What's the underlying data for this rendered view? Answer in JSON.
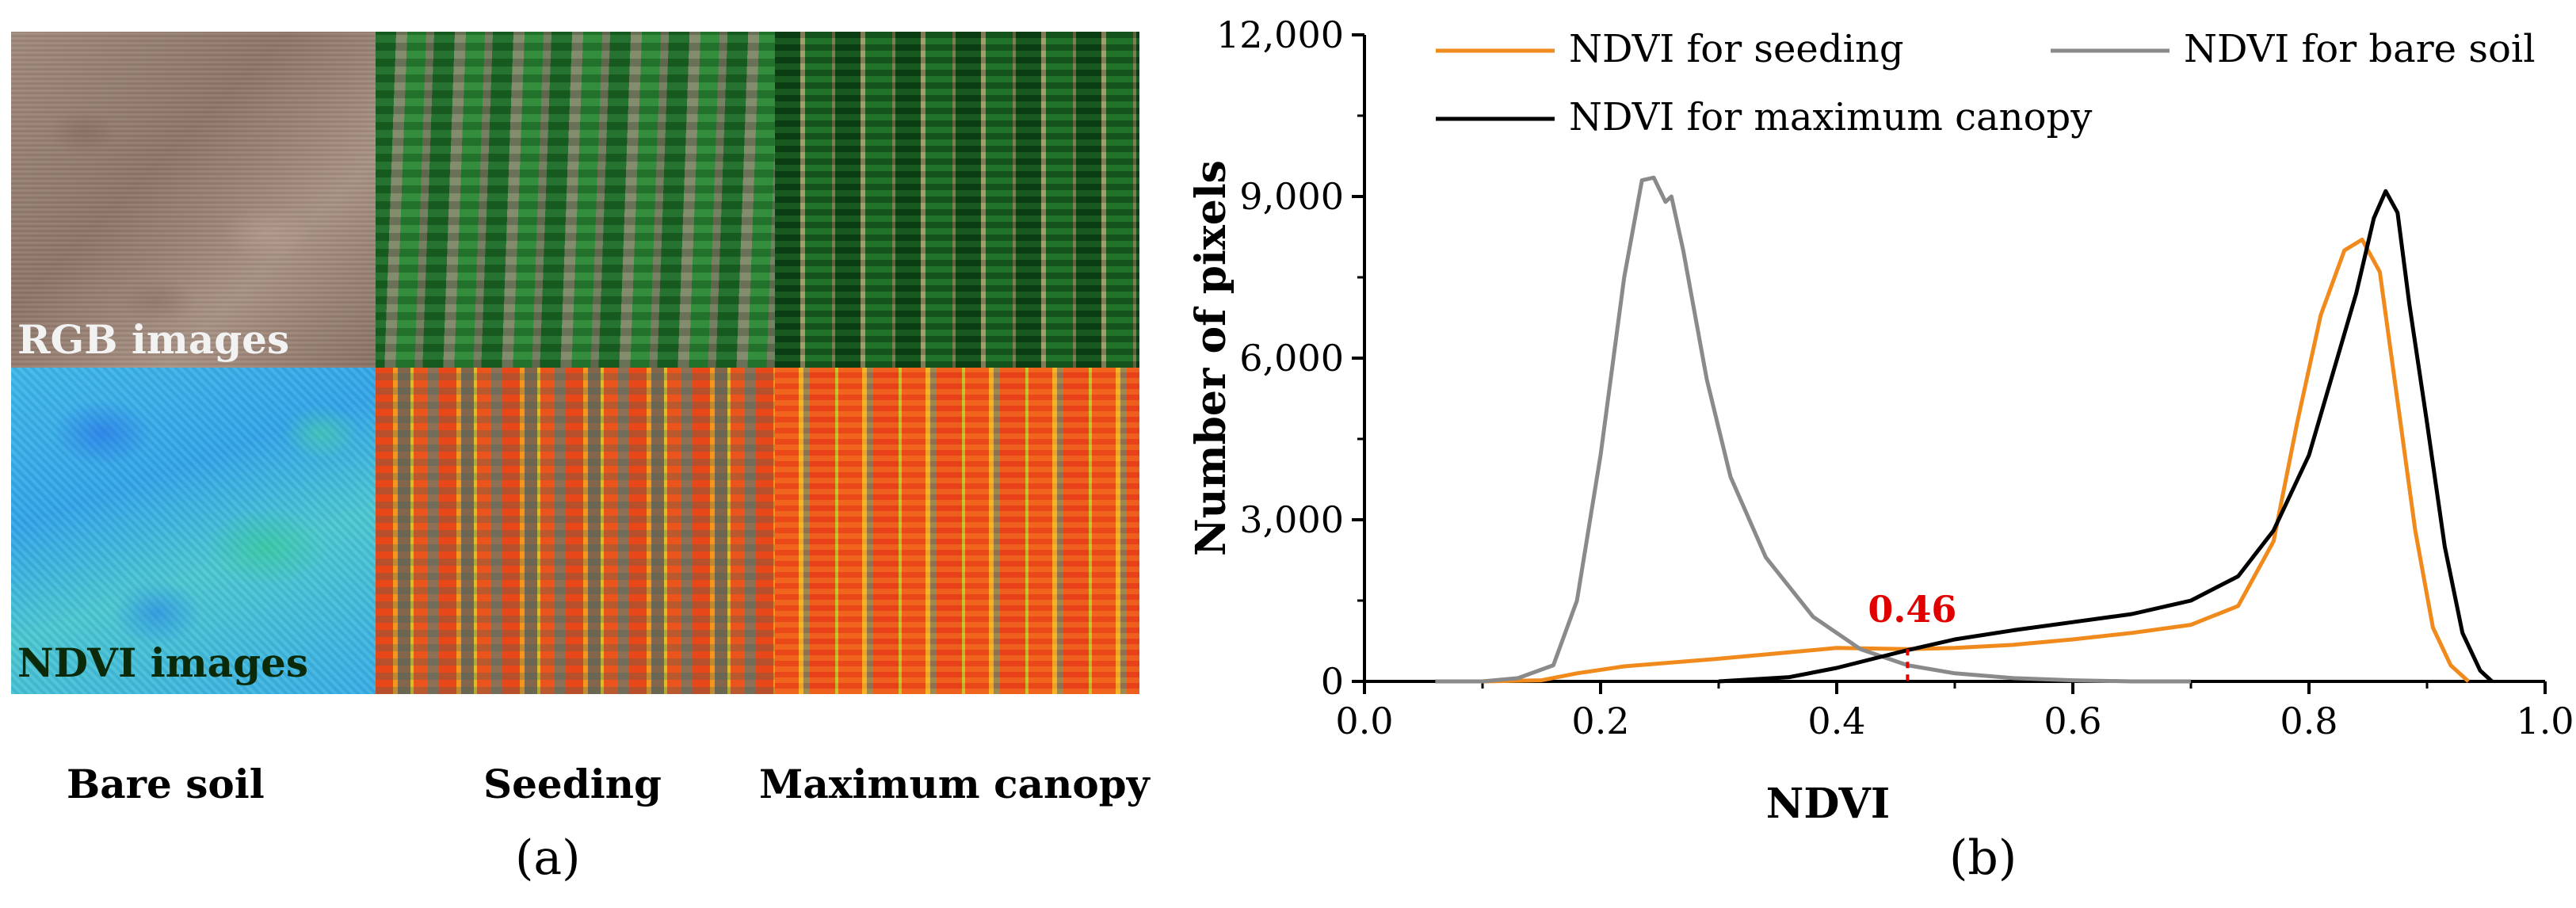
{
  "panel_a": {
    "rgb_label": "RGB images",
    "ndvi_label": "NDVI images",
    "stages": [
      "Bare soil",
      "Seeding",
      "Maximum canopy"
    ],
    "caption": "(a)"
  },
  "panel_b": {
    "caption": "(b)"
  },
  "chart_data": {
    "type": "line",
    "xlabel": "NDVI",
    "ylabel": "Number of pixels",
    "xlim": [
      0.0,
      1.0
    ],
    "ylim": [
      0,
      12000
    ],
    "xticks": [
      "0.0",
      "0.2",
      "0.4",
      "0.6",
      "0.8",
      "1.0"
    ],
    "yticks": [
      "0",
      "3,000",
      "6,000",
      "9,000",
      "12,000"
    ],
    "annotation": {
      "text": "0.46",
      "x": 0.46,
      "color": "#e00000"
    },
    "series": [
      {
        "name": "NDVI for seeding",
        "color": "#f08a1c",
        "points": [
          [
            0.1,
            0
          ],
          [
            0.15,
            20
          ],
          [
            0.18,
            150
          ],
          [
            0.22,
            280
          ],
          [
            0.3,
            420
          ],
          [
            0.36,
            540
          ],
          [
            0.4,
            620
          ],
          [
            0.46,
            600
          ],
          [
            0.5,
            620
          ],
          [
            0.55,
            680
          ],
          [
            0.6,
            780
          ],
          [
            0.65,
            900
          ],
          [
            0.7,
            1050
          ],
          [
            0.74,
            1400
          ],
          [
            0.77,
            2600
          ],
          [
            0.79,
            4800
          ],
          [
            0.81,
            6800
          ],
          [
            0.83,
            8000
          ],
          [
            0.845,
            8200
          ],
          [
            0.86,
            7600
          ],
          [
            0.875,
            5200
          ],
          [
            0.89,
            2800
          ],
          [
            0.905,
            1000
          ],
          [
            0.92,
            300
          ],
          [
            0.935,
            0
          ]
        ]
      },
      {
        "name": "NDVI for bare soil",
        "color": "#8a8a8a",
        "points": [
          [
            0.06,
            0
          ],
          [
            0.1,
            0
          ],
          [
            0.13,
            60
          ],
          [
            0.16,
            300
          ],
          [
            0.18,
            1500
          ],
          [
            0.2,
            4200
          ],
          [
            0.22,
            7500
          ],
          [
            0.235,
            9300
          ],
          [
            0.245,
            9350
          ],
          [
            0.255,
            8900
          ],
          [
            0.26,
            9000
          ],
          [
            0.27,
            8000
          ],
          [
            0.29,
            5600
          ],
          [
            0.31,
            3800
          ],
          [
            0.34,
            2300
          ],
          [
            0.38,
            1200
          ],
          [
            0.42,
            600
          ],
          [
            0.46,
            300
          ],
          [
            0.5,
            150
          ],
          [
            0.55,
            60
          ],
          [
            0.6,
            20
          ],
          [
            0.65,
            0
          ],
          [
            0.7,
            0
          ]
        ]
      },
      {
        "name": "NDVI for maximum canopy",
        "color": "#000000",
        "points": [
          [
            0.3,
            0
          ],
          [
            0.36,
            80
          ],
          [
            0.4,
            250
          ],
          [
            0.44,
            470
          ],
          [
            0.46,
            580
          ],
          [
            0.5,
            780
          ],
          [
            0.55,
            950
          ],
          [
            0.6,
            1100
          ],
          [
            0.65,
            1250
          ],
          [
            0.7,
            1500
          ],
          [
            0.74,
            1950
          ],
          [
            0.77,
            2800
          ],
          [
            0.8,
            4200
          ],
          [
            0.82,
            5700
          ],
          [
            0.84,
            7200
          ],
          [
            0.855,
            8600
          ],
          [
            0.865,
            9100
          ],
          [
            0.875,
            8700
          ],
          [
            0.885,
            7000
          ],
          [
            0.9,
            4800
          ],
          [
            0.915,
            2500
          ],
          [
            0.93,
            900
          ],
          [
            0.945,
            200
          ],
          [
            0.955,
            0
          ]
        ]
      }
    ]
  }
}
